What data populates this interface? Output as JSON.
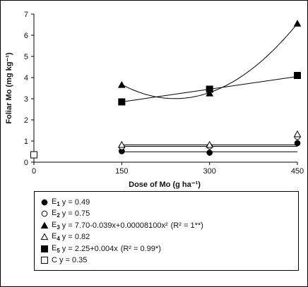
{
  "chart_data": {
    "type": "scatter",
    "xlabel": "Dose of Mo (g ha⁻¹)",
    "ylabel": "Foliar Mo (mg kg⁻¹)",
    "xlim": [
      0,
      450
    ],
    "ylim": [
      0,
      7
    ],
    "x_ticks": [
      "0",
      "150",
      "300",
      "450"
    ],
    "y_ticks": [
      "0",
      "1",
      "2",
      "3",
      "4",
      "5",
      "6",
      "7"
    ],
    "grid": false,
    "legend_placement": "below",
    "x": [
      150,
      300,
      450
    ],
    "series": [
      {
        "name": "E1",
        "marker": "filled-circle",
        "values": [
          0.52,
          0.45,
          0.9
        ],
        "fit": {
          "type": "constant",
          "value": 0.49
        },
        "equation": "y = 0.49",
        "r2": ""
      },
      {
        "name": "E2",
        "marker": "open-circle",
        "values": [
          0.72,
          0.75,
          1.2
        ],
        "fit": {
          "type": "constant",
          "value": 0.75
        },
        "equation": "y = 0.75",
        "r2": ""
      },
      {
        "name": "E3",
        "marker": "filled-triangle",
        "values": [
          3.65,
          3.25,
          6.55
        ],
        "fit": {
          "type": "quadratic",
          "coefficients": [
            7.7,
            -0.039,
            8.1e-05
          ]
        },
        "equation": "y = 7.70-0.039x+0.00008100x²",
        "r2": "(R² = 1**)"
      },
      {
        "name": "E4",
        "marker": "open-triangle",
        "values": [
          0.82,
          0.82,
          1.32
        ],
        "fit": {
          "type": "constant",
          "value": 0.82
        },
        "equation": "y = 0.82",
        "r2": ""
      },
      {
        "name": "E5",
        "marker": "filled-square",
        "values": [
          2.85,
          3.45,
          4.1
        ],
        "fit": {
          "type": "linear",
          "coefficients": [
            2.25,
            0.004
          ]
        },
        "equation": "y = 2.25+0.004x",
        "r2": "(R² = 0.99*)"
      },
      {
        "name": "C",
        "marker": "open-square",
        "x": [
          0
        ],
        "values": [
          0.35
        ],
        "equation": "y = 0.35",
        "r2": ""
      }
    ]
  }
}
